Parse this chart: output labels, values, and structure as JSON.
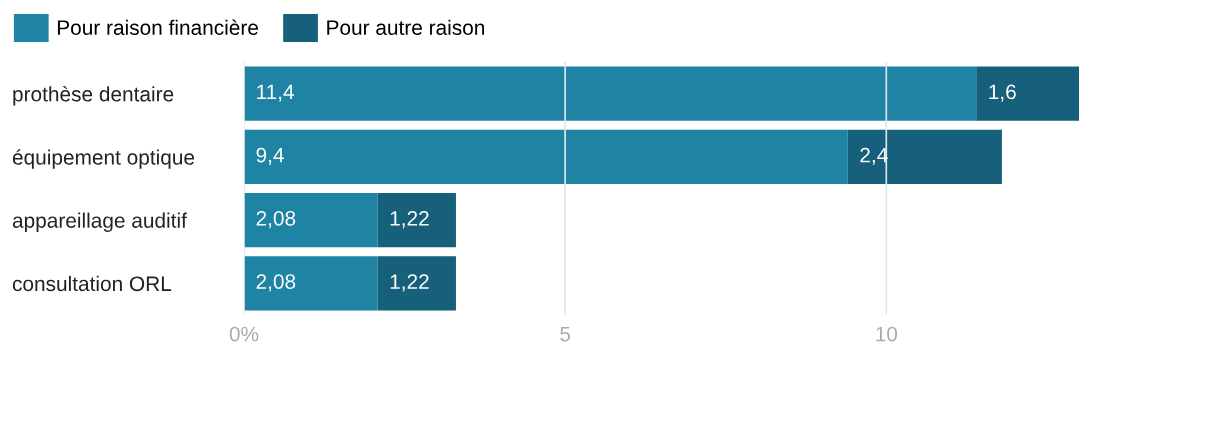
{
  "chart_data": {
    "type": "bar",
    "orientation": "horizontal",
    "stacked": true,
    "categories": [
      "prothèse dentaire",
      "équipement optique",
      "appareillage auditif",
      "consultation ORL"
    ],
    "series": [
      {
        "name": "Pour raison financière",
        "color": "#1f84a3",
        "values": [
          11.4,
          9.4,
          2.08,
          2.08
        ],
        "value_labels": [
          "11,4",
          "9,4",
          "2,08",
          "2,08"
        ]
      },
      {
        "name": "Pour autre raison",
        "color": "#17607b",
        "values": [
          1.6,
          2.4,
          1.22,
          1.22
        ],
        "value_labels": [
          "1,6",
          "2,4",
          "1,22",
          "1,22"
        ]
      }
    ],
    "xlim": [
      0,
      13
    ],
    "xticks": [
      {
        "value": 0,
        "label": "0%"
      },
      5,
      10
    ],
    "grid": "x",
    "legend": "top left"
  }
}
